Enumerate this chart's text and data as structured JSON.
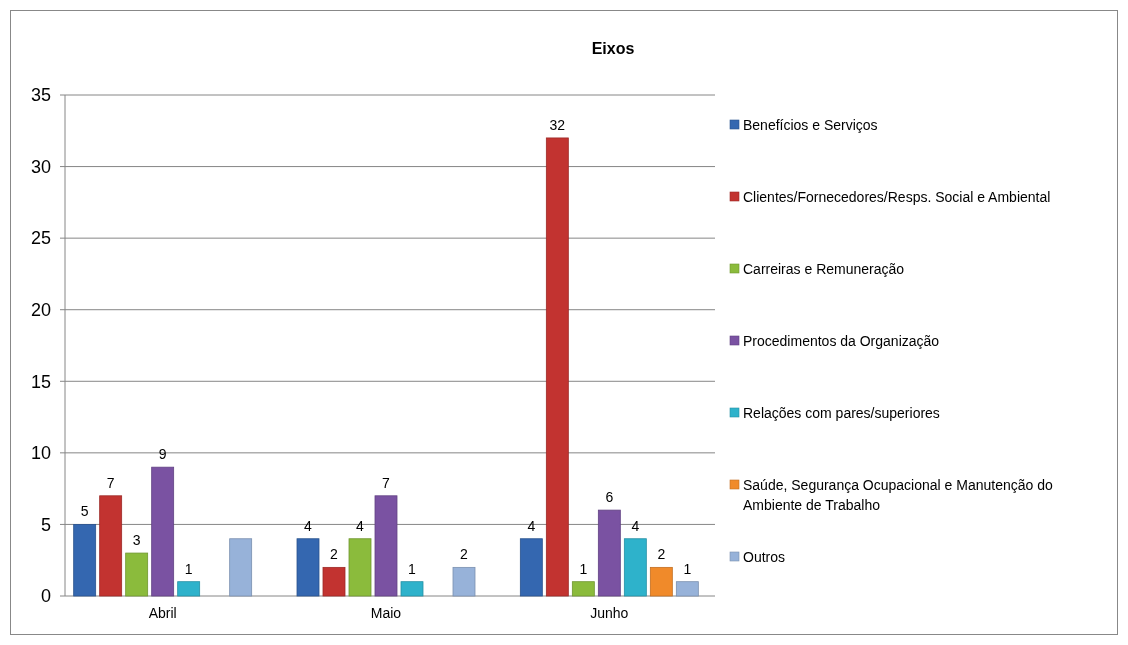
{
  "chart_data": {
    "type": "bar",
    "title": "Eixos",
    "categories": [
      "Abril",
      "Maio",
      "Junho"
    ],
    "series": [
      {
        "name": "Benefícios e Serviços",
        "color": "#3467b0",
        "values": [
          5,
          4,
          4
        ],
        "value_labels": [
          "5",
          "4",
          "4"
        ]
      },
      {
        "name": "Clientes/Fornecedores/Resps. Social e Ambiental",
        "color": "#c23330",
        "values": [
          7,
          2,
          32
        ],
        "value_labels": [
          "7",
          "2",
          "32"
        ]
      },
      {
        "name": "Carreiras e Remuneração",
        "color": "#8bbb3c",
        "values": [
          3,
          4,
          1
        ],
        "value_labels": [
          "3",
          "4",
          "1"
        ]
      },
      {
        "name": "Procedimentos da Organização",
        "color": "#7a52a2",
        "values": [
          9,
          7,
          6
        ],
        "value_labels": [
          "9",
          "7",
          "6"
        ]
      },
      {
        "name": "Relações com pares/superiores",
        "color": "#2eb2cb",
        "values": [
          1,
          1,
          4
        ],
        "value_labels": [
          "1",
          "1",
          "4"
        ]
      },
      {
        "name": "Saúde, Segurança Ocupacional e Manutenção do Ambiente de Trabalho",
        "color": "#f08a2a",
        "values": [
          null,
          null,
          2
        ],
        "value_labels": [
          null,
          null,
          "2"
        ]
      },
      {
        "name": "Outros",
        "color": "#97b2d9",
        "values": [
          4,
          2,
          1
        ],
        "value_labels": [
          null,
          "2",
          "1"
        ]
      }
    ],
    "ylim": [
      0,
      35
    ],
    "yticks": [
      0,
      5,
      10,
      15,
      20,
      25,
      30,
      35
    ],
    "grid": "y",
    "legend": "right"
  }
}
